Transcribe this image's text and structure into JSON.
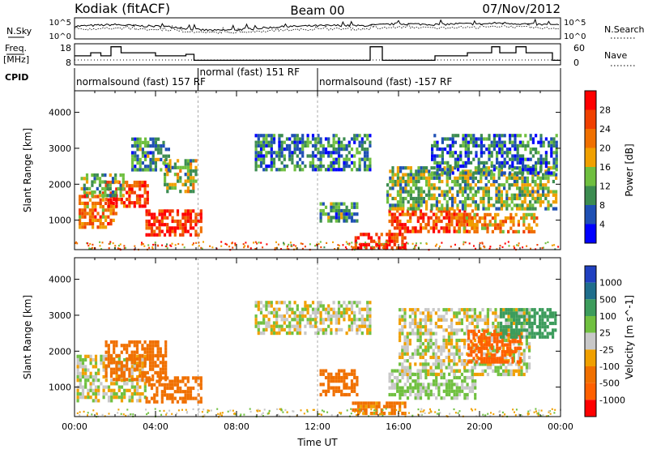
{
  "header": {
    "station": "Kodiak (fitACF)",
    "beam": "Beam 00",
    "date": "07/Nov/2012"
  },
  "colors": {
    "power_scale": [
      "#0000ff",
      "#1f50b4",
      "#3c8c50",
      "#6fbf3f",
      "#f0a000",
      "#f07000",
      "#f04000",
      "#ff0000"
    ],
    "velocity_scale": [
      "#2040c0",
      "#1f6e8c",
      "#3c9c5c",
      "#70c040",
      "#c8c8c8",
      "#f0a000",
      "#f07000",
      "#ff6000",
      "#ff0000"
    ]
  },
  "chart_data": [
    {
      "type": "line",
      "panel": "noise",
      "left_label": "N.Sky",
      "right_label": "N.Search",
      "left_ticks": [
        "10^5",
        "10^0"
      ],
      "right_ticks": [
        "10^5",
        "10^0"
      ],
      "xlim": [
        0,
        24
      ],
      "series": [
        {
          "values": [
            [
              0,
              3.0
            ],
            [
              1,
              3.2
            ],
            [
              2,
              3.4
            ],
            [
              3,
              3.1
            ],
            [
              4,
              3.0
            ],
            [
              5,
              2.8
            ],
            [
              6,
              2.2
            ],
            [
              7,
              2.0
            ],
            [
              8,
              2.2
            ],
            [
              9,
              2.5
            ],
            [
              10,
              2.8
            ],
            [
              11,
              3.0
            ],
            [
              12,
              3.1
            ],
            [
              13,
              3.2
            ],
            [
              14,
              3.1
            ],
            [
              15,
              3.3
            ],
            [
              16,
              3.6
            ],
            [
              17,
              3.5
            ],
            [
              18,
              3.4
            ],
            [
              19,
              3.6
            ],
            [
              20,
              3.5
            ],
            [
              21,
              3.8
            ],
            [
              22,
              3.6
            ],
            [
              23,
              3.4
            ],
            [
              24,
              3.3
            ]
          ]
        },
        {
          "values": [
            [
              0,
              2.2
            ],
            [
              1,
              2.4
            ],
            [
              2,
              2.6
            ],
            [
              3,
              2.3
            ],
            [
              4,
              2.2
            ],
            [
              5,
              2.0
            ],
            [
              6,
              1.6
            ],
            [
              7,
              1.5
            ],
            [
              8,
              1.6
            ],
            [
              9,
              1.8
            ],
            [
              10,
              2.0
            ],
            [
              11,
              2.2
            ],
            [
              12,
              2.3
            ],
            [
              13,
              2.4
            ],
            [
              14,
              2.3
            ],
            [
              15,
              2.5
            ],
            [
              16,
              2.8
            ],
            [
              17,
              2.7
            ],
            [
              18,
              2.6
            ],
            [
              19,
              2.8
            ],
            [
              20,
              2.7
            ],
            [
              21,
              3.0
            ],
            [
              22,
              2.8
            ],
            [
              23,
              2.6
            ],
            [
              24,
              2.5
            ]
          ]
        }
      ]
    },
    {
      "type": "line",
      "panel": "frequency",
      "left_label_top": "Freq.",
      "left_label_bottom": "[MHz]",
      "right_label": "Nave",
      "left_ticks": [
        "18",
        "8"
      ],
      "right_ticks": [
        "60",
        "0"
      ],
      "xlim": [
        0,
        24
      ],
      "series": [
        {
          "values": [
            [
              0,
              12
            ],
            [
              0.8,
              12
            ],
            [
              0.8,
              14
            ],
            [
              1.3,
              14
            ],
            [
              1.3,
              12
            ],
            [
              1.8,
              12
            ],
            [
              1.8,
              18
            ],
            [
              2.3,
              18
            ],
            [
              2.3,
              14
            ],
            [
              4.0,
              14
            ],
            [
              4.0,
              12
            ],
            [
              5.5,
              12
            ],
            [
              5.5,
              13
            ],
            [
              5.9,
              13
            ],
            [
              5.9,
              9
            ],
            [
              14.6,
              9
            ],
            [
              14.6,
              18
            ],
            [
              15.2,
              18
            ],
            [
              15.2,
              9
            ],
            [
              17.8,
              9
            ],
            [
              17.8,
              12
            ],
            [
              19.4,
              12
            ],
            [
              19.4,
              14
            ],
            [
              20.6,
              14
            ],
            [
              20.6,
              18
            ],
            [
              21.0,
              18
            ],
            [
              21.0,
              14
            ],
            [
              21.8,
              14
            ],
            [
              21.8,
              18
            ],
            [
              22.3,
              18
            ],
            [
              22.3,
              14
            ],
            [
              23.6,
              14
            ],
            [
              23.6,
              9
            ],
            [
              24,
              9
            ]
          ]
        }
      ]
    },
    {
      "type": "table",
      "panel": "cpid",
      "label": "CPID",
      "segments": [
        {
          "start": 0,
          "end": 6.1,
          "label": "normalsound (fast) 157 RF"
        },
        {
          "start": 6.1,
          "end": 12.0,
          "label": "normal (fast) 151 RF"
        },
        {
          "start": 12.0,
          "end": 24,
          "label": "normalsound (fast) -157 RF"
        }
      ]
    },
    {
      "type": "heatmap",
      "panel": "power",
      "ylabel": "Slant Range [km]",
      "xlabel": "",
      "colorbar_label": "Power [dB]",
      "colorbar_ticks": [
        4,
        8,
        12,
        16,
        20,
        24,
        28
      ],
      "yticks": [
        1000,
        2000,
        3000,
        4000
      ],
      "xlim": [
        0,
        24
      ],
      "ylim": [
        180,
        4600
      ],
      "regions": [
        {
          "t": [
            0.2,
            2.0
          ],
          "r": [
            800,
            1800
          ],
          "v": 22
        },
        {
          "t": [
            1.5,
            3.6
          ],
          "r": [
            1400,
            2100
          ],
          "v": 26
        },
        {
          "t": [
            3.5,
            6.3
          ],
          "r": [
            600,
            1300
          ],
          "v": 27
        },
        {
          "t": [
            4.4,
            6.0
          ],
          "r": [
            1800,
            2700
          ],
          "v": 14
        },
        {
          "t": [
            0.3,
            2.4
          ],
          "r": [
            1700,
            2300
          ],
          "v": 12
        },
        {
          "t": [
            2.8,
            4.6
          ],
          "r": [
            2400,
            3300
          ],
          "v": 10
        },
        {
          "t": [
            8.9,
            14.6
          ],
          "r": [
            2400,
            3400
          ],
          "v": 9
        },
        {
          "t": [
            12.1,
            13.9
          ],
          "r": [
            1000,
            1500
          ],
          "v": 10
        },
        {
          "t": [
            13.7,
            16.3
          ],
          "r": [
            250,
            650
          ],
          "v": 28
        },
        {
          "t": [
            15.5,
            19.8
          ],
          "r": [
            700,
            1300
          ],
          "v": 26
        },
        {
          "t": [
            15.4,
            23.8
          ],
          "r": [
            1300,
            2500
          ],
          "v": 13
        },
        {
          "t": [
            17.6,
            23.8
          ],
          "r": [
            2300,
            3400
          ],
          "v": 8
        },
        {
          "t": [
            18.8,
            22.8
          ],
          "r": [
            700,
            1200
          ],
          "v": 20
        }
      ]
    },
    {
      "type": "heatmap",
      "panel": "velocity",
      "ylabel": "Slant Range [km]",
      "xlabel": "Time UT",
      "colorbar_label": "Velocity [m s^-1]",
      "colorbar_ticks": [
        1000,
        500,
        100,
        25,
        -25,
        -100,
        -500,
        -1000
      ],
      "yticks": [
        1000,
        2000,
        3000,
        4000
      ],
      "xticks": [
        "00:00",
        "04:00",
        "08:00",
        "12:00",
        "16:00",
        "20:00",
        "00:00"
      ],
      "xlim": [
        0,
        24
      ],
      "ylim": [
        180,
        4600
      ],
      "regions": [
        {
          "t": [
            0.1,
            3.5
          ],
          "r": [
            600,
            1900
          ],
          "v": 0
        },
        {
          "t": [
            1.5,
            4.5
          ],
          "r": [
            1200,
            2300
          ],
          "v": -200
        },
        {
          "t": [
            3.5,
            6.3
          ],
          "r": [
            600,
            1300
          ],
          "v": -300
        },
        {
          "t": [
            8.9,
            14.6
          ],
          "r": [
            2500,
            3400
          ],
          "v": 0
        },
        {
          "t": [
            12.1,
            14.0
          ],
          "r": [
            800,
            1500
          ],
          "v": -200
        },
        {
          "t": [
            13.7,
            16.3
          ],
          "r": [
            250,
            600
          ],
          "v": -150
        },
        {
          "t": [
            15.5,
            19.8
          ],
          "r": [
            700,
            1500
          ],
          "v": 40
        },
        {
          "t": [
            16.0,
            22.5
          ],
          "r": [
            1400,
            3200
          ],
          "v": 0
        },
        {
          "t": [
            19.4,
            22.0
          ],
          "r": [
            1700,
            2600
          ],
          "v": -600
        },
        {
          "t": [
            21.0,
            23.8
          ],
          "r": [
            2400,
            3200
          ],
          "v": 200
        }
      ]
    }
  ]
}
